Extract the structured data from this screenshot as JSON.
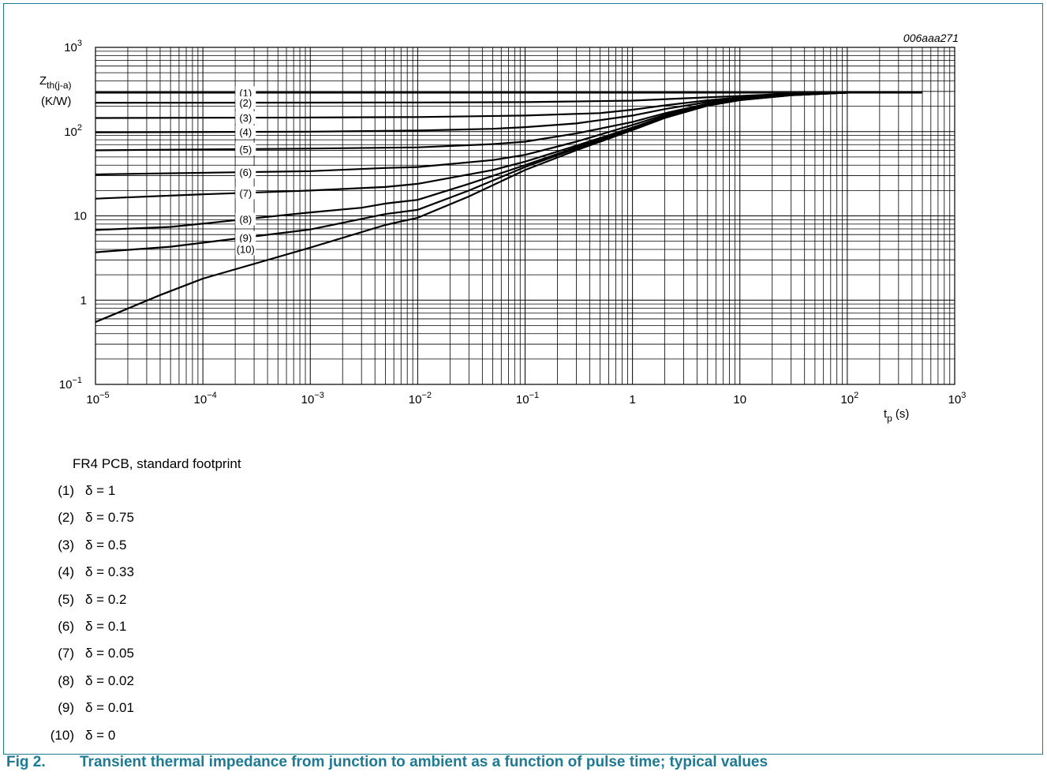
{
  "chart_data": {
    "type": "line",
    "code": "006aaa271",
    "ylabel_main": "Z",
    "ylabel_sub": "th(j-a)",
    "yunit": "(K/W)",
    "xlabel_main": "t",
    "xlabel_sub": "p",
    "xunit": "(s)",
    "x_scale": "log",
    "y_scale": "log",
    "xlim": [
      1e-05,
      1000
    ],
    "ylim": [
      0.1,
      1000
    ],
    "grid": true,
    "x_ticks": [
      {
        "base": "10",
        "exp": "−5"
      },
      {
        "base": "10",
        "exp": "−4"
      },
      {
        "base": "10",
        "exp": "−3"
      },
      {
        "base": "10",
        "exp": "−2"
      },
      {
        "base": "10",
        "exp": "−1"
      },
      {
        "base": "1",
        "exp": ""
      },
      {
        "base": "10",
        "exp": ""
      },
      {
        "base": "10",
        "exp": "2"
      },
      {
        "base": "10",
        "exp": "3"
      }
    ],
    "y_ticks": [
      {
        "base": "10",
        "exp": "−1"
      },
      {
        "base": "1",
        "exp": ""
      },
      {
        "base": "10",
        "exp": ""
      },
      {
        "base": "10",
        "exp": "2"
      },
      {
        "base": "10",
        "exp": "3"
      }
    ],
    "series": [
      {
        "name": "(1)",
        "label_x": 0.00025,
        "x": [
          1e-05,
          0.001,
          0.01,
          0.1,
          1,
          10,
          100,
          500
        ],
        "y": [
          290,
          290,
          290,
          290,
          290,
          290,
          290,
          290
        ]
      },
      {
        "name": "(2)",
        "label_x": 0.00025,
        "x": [
          1e-05,
          0.001,
          0.01,
          0.1,
          1,
          3,
          10,
          30,
          100,
          500
        ],
        "y": [
          220,
          221,
          222,
          224,
          233,
          248,
          265,
          282,
          290,
          290
        ]
      },
      {
        "name": "(3)",
        "label_x": 0.00025,
        "x": [
          1e-05,
          0.001,
          0.01,
          0.1,
          0.5,
          1,
          2,
          5,
          10,
          30,
          100,
          500
        ],
        "y": [
          145,
          147,
          149,
          155,
          166,
          182,
          205,
          235,
          255,
          278,
          290,
          290
        ]
      },
      {
        "name": "(4)",
        "label_x": 0.00025,
        "x": [
          1e-05,
          0.001,
          0.01,
          0.05,
          0.1,
          0.3,
          1,
          2,
          5,
          10,
          30,
          100,
          500
        ],
        "y": [
          98,
          100,
          103,
          108,
          113,
          125,
          155,
          185,
          225,
          250,
          276,
          290,
          290
        ]
      },
      {
        "name": "(5)",
        "label_x": 0.00025,
        "x": [
          1e-05,
          0.001,
          0.01,
          0.05,
          0.1,
          0.3,
          1,
          2,
          5,
          10,
          30,
          100,
          500
        ],
        "y": [
          60,
          63,
          65,
          71,
          76,
          95,
          130,
          165,
          215,
          245,
          274,
          290,
          290
        ]
      },
      {
        "name": "(6)",
        "label_x": 0.00025,
        "x": [
          1e-05,
          0.001,
          0.005,
          0.01,
          0.05,
          0.1,
          0.3,
          1,
          2,
          5,
          10,
          30,
          100,
          500
        ],
        "y": [
          31,
          34,
          37,
          38,
          46,
          53,
          76,
          120,
          158,
          210,
          242,
          273,
          290,
          290
        ]
      },
      {
        "name": "(7)",
        "label_x": 0.00025,
        "x": [
          1e-05,
          0.0001,
          0.001,
          0.005,
          0.01,
          0.05,
          0.1,
          0.3,
          1,
          2,
          5,
          10,
          30,
          100,
          500
        ],
        "y": [
          16,
          18,
          20,
          22,
          24,
          35,
          44,
          68,
          112,
          152,
          207,
          240,
          272,
          290,
          290
        ]
      },
      {
        "name": "(8)",
        "label_x": 0.00025,
        "x": [
          1e-05,
          5e-05,
          0.0001,
          0.001,
          0.003,
          0.005,
          0.01,
          0.03,
          0.1,
          0.3,
          1,
          2,
          5,
          10,
          30,
          100,
          500
        ],
        "y": [
          6.8,
          7.4,
          8.1,
          11,
          12.5,
          14,
          15.5,
          24,
          40,
          65,
          108,
          148,
          205,
          238,
          271,
          290,
          290
        ]
      },
      {
        "name": "(9)",
        "label_x": 0.00025,
        "x": [
          1e-05,
          5e-05,
          0.0001,
          0.001,
          0.005,
          0.01,
          0.03,
          0.1,
          0.3,
          1,
          2,
          5,
          10,
          30,
          100,
          500
        ],
        "y": [
          3.7,
          4.3,
          4.8,
          6.9,
          10.5,
          11.8,
          20,
          38,
          63,
          106,
          147,
          204,
          237,
          270,
          290,
          290
        ]
      },
      {
        "name": "(10)",
        "label_x": 0.00025,
        "x": [
          1e-05,
          4e-05,
          0.0001,
          0.001,
          0.005,
          0.01,
          0.03,
          0.1,
          0.3,
          1,
          2,
          5,
          10,
          30,
          100,
          500
        ],
        "y": [
          0.55,
          1.15,
          1.8,
          4.2,
          7.8,
          9.5,
          17,
          35,
          60,
          104,
          145,
          203,
          236,
          270,
          290,
          290
        ]
      }
    ]
  },
  "notes": {
    "condition": "FR4 PCB, standard footprint",
    "legend": [
      {
        "num": "(1)",
        "text": "δ = 1"
      },
      {
        "num": "(2)",
        "text": "δ = 0.75"
      },
      {
        "num": "(3)",
        "text": "δ = 0.5"
      },
      {
        "num": "(4)",
        "text": "δ = 0.33"
      },
      {
        "num": "(5)",
        "text": "δ = 0.2"
      },
      {
        "num": "(6)",
        "text": "δ = 0.1"
      },
      {
        "num": "(7)",
        "text": "δ = 0.05"
      },
      {
        "num": "(8)",
        "text": "δ = 0.02"
      },
      {
        "num": "(9)",
        "text": "δ = 0.01"
      },
      {
        "num": "(10)",
        "text": "δ = 0"
      }
    ]
  },
  "caption": {
    "fig": "Fig 2.",
    "text": "Transient thermal impedance from junction to ambient as a function of pulse time; typical values"
  },
  "colors": {
    "accent": "#1c7a94",
    "line": "#000000",
    "grid": "#000000"
  }
}
